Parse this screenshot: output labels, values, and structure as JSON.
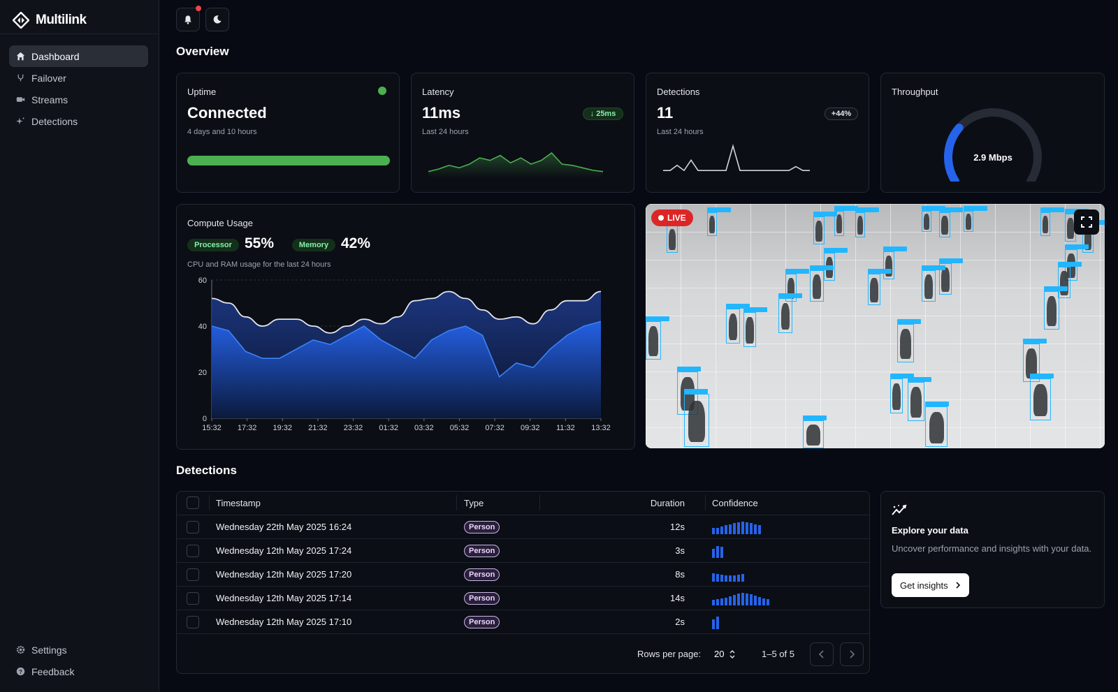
{
  "app": {
    "name": "Multilink"
  },
  "sidebar": {
    "items": [
      {
        "label": "Dashboard",
        "icon": "home-icon",
        "active": true
      },
      {
        "label": "Failover",
        "icon": "fork-icon",
        "active": false
      },
      {
        "label": "Streams",
        "icon": "camera-icon",
        "active": false
      },
      {
        "label": "Detections",
        "icon": "sparkle-icon",
        "active": false
      }
    ],
    "footer": [
      {
        "label": "Settings",
        "icon": "gear-icon"
      },
      {
        "label": "Feedback",
        "icon": "help-icon"
      }
    ]
  },
  "topbar": {
    "notification_icon": "bell-icon",
    "theme_icon": "moon-icon",
    "has_unread": true
  },
  "overview": {
    "title": "Overview",
    "uptime": {
      "label": "Uptime",
      "value": "Connected",
      "sub": "4 days and 10 hours",
      "status_color": "#4caf50",
      "progress": 1.0
    },
    "latency": {
      "label": "Latency",
      "value": "11ms",
      "sub": "Last 24 hours",
      "delta": "↓ 25ms",
      "spark": [
        3,
        5,
        8,
        6,
        9,
        14,
        12,
        16,
        10,
        14,
        9,
        12,
        18,
        9,
        8,
        6,
        4,
        3
      ]
    },
    "detections": {
      "label": "Detections",
      "value": "11",
      "sub": "Last 24 hours",
      "delta": "+44%",
      "spark": [
        1,
        1,
        5,
        1,
        9,
        1,
        1,
        1,
        1,
        1,
        20,
        1,
        1,
        1,
        1,
        1,
        1,
        1,
        1,
        4,
        1,
        1
      ]
    },
    "throughput": {
      "label": "Throughput",
      "value": "2.9 Mbps",
      "fraction": 0.3
    }
  },
  "compute": {
    "title": "Compute Usage",
    "processor_label": "Processor",
    "processor_value": "55%",
    "memory_label": "Memory",
    "memory_value": "42%",
    "sub": "CPU and RAM usage for the last 24 hours"
  },
  "chart_data": {
    "type": "area",
    "categories": [
      "15:32",
      "17:32",
      "19:32",
      "21:32",
      "23:32",
      "01:32",
      "03:32",
      "05:32",
      "07:32",
      "09:32",
      "11:32",
      "13:32"
    ],
    "ylim": [
      0,
      60
    ],
    "yticks": [
      0,
      20,
      40,
      60
    ],
    "x": [
      0,
      1,
      2,
      3,
      4,
      5,
      6,
      7,
      8,
      9,
      10,
      11,
      12,
      13,
      14,
      15,
      16,
      17,
      18,
      19,
      20,
      21,
      22,
      23
    ],
    "series": [
      {
        "values": [
          52,
          50,
          44,
          40,
          43,
          43,
          40,
          37,
          40,
          43,
          41,
          44,
          51,
          52,
          55,
          52,
          47,
          43,
          44,
          41,
          47,
          51,
          51,
          55
        ]
      },
      {
        "values": [
          40,
          38,
          29,
          26,
          26,
          30,
          34,
          32,
          36,
          40,
          34,
          30,
          26,
          34,
          38,
          40,
          36,
          18,
          24,
          22,
          30,
          36,
          40,
          42
        ]
      }
    ]
  },
  "live": {
    "badge": "LIVE",
    "fullscreen_icon": "expand-icon"
  },
  "detections_table": {
    "title": "Detections",
    "columns": {
      "timestamp": "Timestamp",
      "type": "Type",
      "duration": "Duration",
      "confidence": "Confidence"
    },
    "rows": [
      {
        "timestamp": "Wednesday 22th May 2025 16:24",
        "type": "Person",
        "duration": "12s",
        "bars": [
          0.45,
          0.5,
          0.6,
          0.7,
          0.75,
          0.85,
          0.9,
          0.95,
          0.9,
          0.85,
          0.75,
          0.7
        ]
      },
      {
        "timestamp": "Wednesday 12th May 2025 17:24",
        "type": "Person",
        "duration": "3s",
        "bars": [
          0.7,
          0.9,
          0.85
        ]
      },
      {
        "timestamp": "Wednesday 12th May 2025 17:20",
        "type": "Person",
        "duration": "8s",
        "bars": [
          0.65,
          0.6,
          0.55,
          0.5,
          0.5,
          0.5,
          0.55,
          0.6
        ]
      },
      {
        "timestamp": "Wednesday 12th May 2025 17:14",
        "type": "Person",
        "duration": "14s",
        "bars": [
          0.4,
          0.45,
          0.55,
          0.6,
          0.7,
          0.8,
          0.9,
          0.95,
          0.9,
          0.85,
          0.75,
          0.65,
          0.55,
          0.5
        ]
      },
      {
        "timestamp": "Wednesday 12th May 2025 17:10",
        "type": "Person",
        "duration": "2s",
        "bars": [
          0.75,
          0.95
        ]
      }
    ],
    "rows_per_page_label": "Rows per page:",
    "rows_per_page": "20",
    "range": "1–5 of 5"
  },
  "insights": {
    "title": "Explore your data",
    "body": "Uncover performance and insights with your data.",
    "button": "Get insights",
    "icon": "trend-icon"
  }
}
